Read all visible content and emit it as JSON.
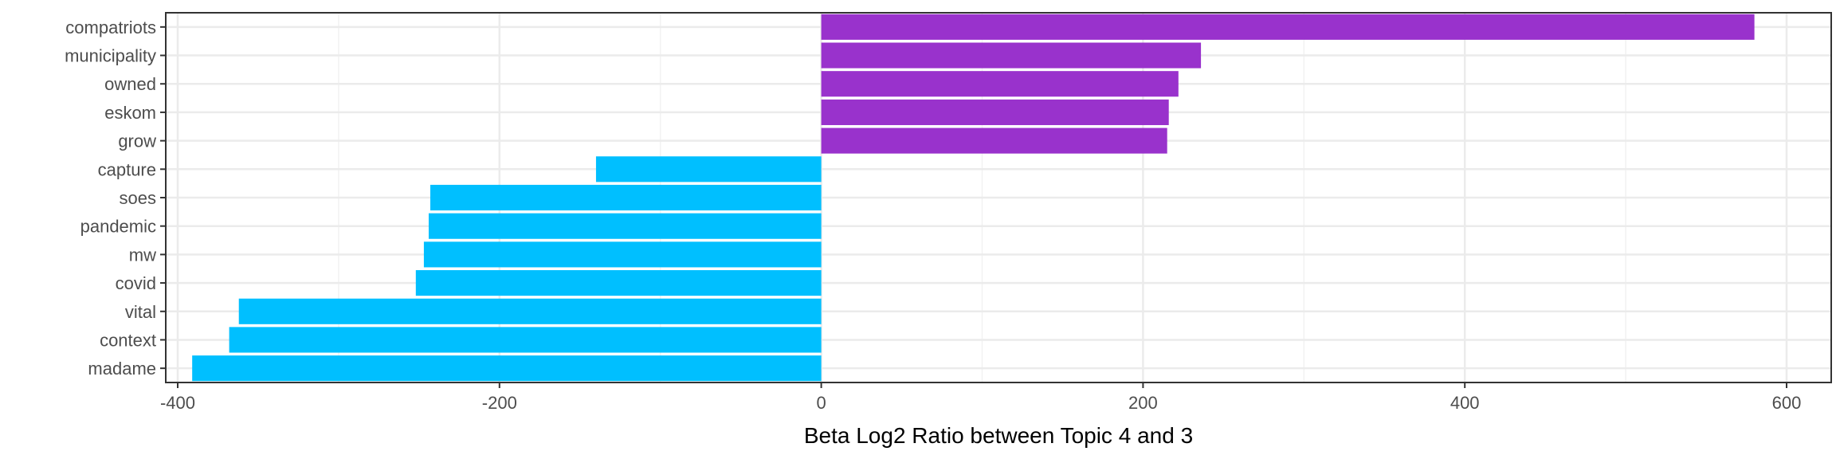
{
  "chart_data": {
    "type": "bar",
    "orientation": "horizontal",
    "title": "",
    "xlabel": "Beta Log2 Ratio between Topic 4 and 3",
    "ylabel": "",
    "xlim": [
      -400,
      600
    ],
    "x_ticks": [
      -400,
      -200,
      0,
      200,
      400,
      600
    ],
    "x_tick_labels": [
      "-400",
      "-200",
      "0",
      "200",
      "400",
      "600"
    ],
    "grid": true,
    "legend": "none",
    "colors": {
      "positive": "#9932CC",
      "negative": "#00BFFF"
    },
    "categories": [
      "compatriots",
      "municipality",
      "owned",
      "eskom",
      "grow",
      "capture",
      "soes",
      "pandemic",
      "mw",
      "covid",
      "vital",
      "context",
      "madame"
    ],
    "values": [
      580,
      236,
      222,
      216,
      215,
      -140,
      -243,
      -244,
      -247,
      -252,
      -362,
      -368,
      -391
    ]
  }
}
